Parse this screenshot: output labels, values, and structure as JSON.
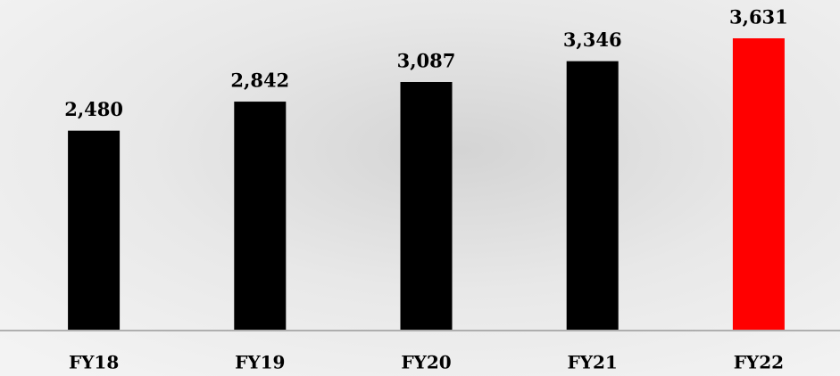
{
  "chart_data": {
    "type": "bar",
    "categories": [
      "FY18",
      "FY19",
      "FY20",
      "FY21",
      "FY22"
    ],
    "values": [
      2480,
      2842,
      3087,
      3346,
      3631
    ],
    "value_labels": [
      "2,480",
      "2,842",
      "3,087",
      "3,346",
      "3,631"
    ],
    "colors": [
      "#000000",
      "#000000",
      "#000000",
      "#000000",
      "#ff0000"
    ]
  }
}
